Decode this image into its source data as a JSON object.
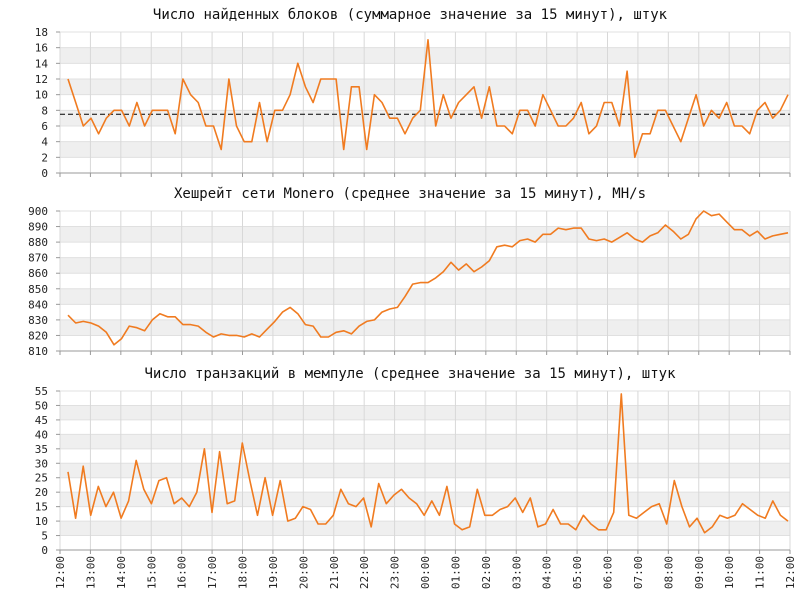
{
  "chart_data": [
    {
      "type": "line",
      "title": "Число найденных блоков (суммарное значение за 15 минут), штук",
      "xlabel": "",
      "ylabel": "",
      "ylim": [
        0,
        18
      ],
      "yticks": [
        0,
        2,
        4,
        6,
        8,
        10,
        12,
        14,
        16,
        18
      ],
      "grid": true,
      "color": "#f07b20",
      "reference_line": 7.5,
      "x_range": [
        "12:00",
        "12:00"
      ],
      "values": [
        12,
        9,
        6,
        7,
        5,
        7,
        8,
        8,
        6,
        9,
        6,
        8,
        8,
        8,
        5,
        12,
        10,
        9,
        6,
        6,
        3,
        12,
        6,
        4,
        4,
        9,
        4,
        8,
        8,
        10,
        14,
        11,
        9,
        12,
        12,
        12,
        3,
        11,
        11,
        3,
        10,
        9,
        7,
        7,
        5,
        7,
        8,
        17,
        6,
        10,
        7,
        9,
        10,
        11,
        7,
        11,
        6,
        6,
        5,
        8,
        8,
        6,
        10,
        8,
        6,
        6,
        7,
        9,
        5,
        6,
        9,
        9,
        6,
        13,
        2,
        5,
        5,
        8,
        8,
        6,
        4,
        7,
        10,
        6,
        8,
        7,
        9,
        6,
        6,
        5,
        8,
        9,
        7,
        8,
        10
      ]
    },
    {
      "type": "line",
      "title": "Хешрейт сети Monero (среднее значение за 15 минут), MH/s",
      "xlabel": "",
      "ylabel": "",
      "ylim": [
        810,
        900
      ],
      "yticks": [
        810,
        820,
        830,
        840,
        850,
        860,
        870,
        880,
        890,
        900
      ],
      "grid": true,
      "color": "#f07b20",
      "x_range": [
        "12:00",
        "12:00"
      ],
      "values": [
        833,
        828,
        829,
        828,
        826,
        822,
        814,
        818,
        826,
        825,
        823,
        830,
        834,
        832,
        832,
        827,
        827,
        826,
        822,
        819,
        821,
        820,
        820,
        819,
        821,
        819,
        824,
        829,
        835,
        838,
        834,
        827,
        826,
        819,
        819,
        822,
        823,
        821,
        826,
        829,
        830,
        835,
        837,
        838,
        845,
        853,
        854,
        854,
        857,
        861,
        867,
        862,
        866,
        861,
        864,
        868,
        877,
        878,
        877,
        881,
        882,
        880,
        885,
        885,
        889,
        888,
        889,
        889,
        882,
        881,
        882,
        880,
        883,
        886,
        882,
        880,
        884,
        886,
        891,
        887,
        882,
        885,
        895,
        900,
        897,
        898,
        893,
        888,
        888,
        884,
        887,
        882,
        884,
        885,
        886
      ]
    },
    {
      "type": "line",
      "title": "Число транзакций в мемпуле (среднее значение за 15 минут), штук",
      "xlabel": "",
      "ylabel": "",
      "ylim": [
        0,
        55
      ],
      "yticks": [
        0,
        5,
        10,
        15,
        20,
        25,
        30,
        35,
        40,
        45,
        50,
        55
      ],
      "grid": true,
      "color": "#f07b20",
      "x_range": [
        "12:00",
        "12:00"
      ],
      "values": [
        27,
        11,
        29,
        12,
        22,
        15,
        20,
        11,
        17,
        31,
        21,
        16,
        24,
        25,
        16,
        18,
        15,
        20,
        35,
        13,
        34,
        16,
        17,
        37,
        24,
        12,
        25,
        12,
        24,
        10,
        11,
        15,
        14,
        9,
        9,
        12,
        21,
        16,
        15,
        18,
        8,
        23,
        16,
        19,
        21,
        18,
        16,
        12,
        17,
        12,
        22,
        9,
        7,
        8,
        21,
        12,
        12,
        14,
        15,
        18,
        13,
        18,
        8,
        9,
        14,
        9,
        9,
        7,
        12,
        9,
        7,
        7,
        13,
        54,
        12,
        11,
        13,
        15,
        16,
        9,
        24,
        15,
        8,
        11,
        6,
        8,
        12,
        11,
        12,
        16,
        14,
        12,
        11,
        17,
        12,
        10
      ]
    }
  ],
  "x_axis": {
    "tick_labels": [
      "12:00",
      "13:00",
      "14:00",
      "15:00",
      "16:00",
      "17:00",
      "18:00",
      "19:00",
      "20:00",
      "21:00",
      "22:00",
      "23:00",
      "00:00",
      "01:00",
      "02:00",
      "03:00",
      "04:00",
      "05:00",
      "06:00",
      "07:00",
      "08:00",
      "09:00",
      "10:00",
      "11:00",
      "12:00"
    ]
  }
}
